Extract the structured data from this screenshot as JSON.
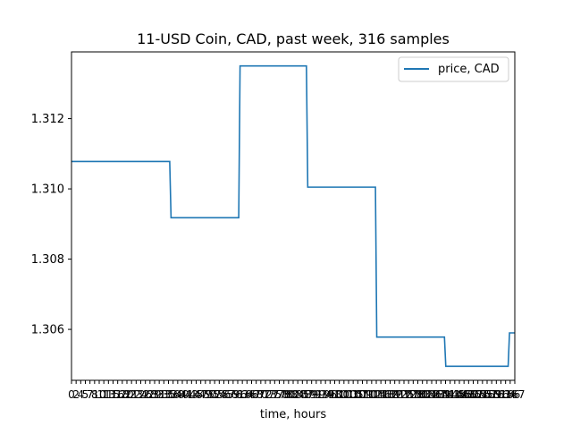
{
  "chart_data": {
    "type": "line",
    "title": "11-USD Coin, CAD, past week, 316 samples",
    "xlabel": "time, hours",
    "ylabel": "",
    "xlim": [
      0,
      167
    ],
    "ylim": [
      1.30455,
      1.3139
    ],
    "yticks": [
      1.306,
      1.308,
      1.31,
      1.312
    ],
    "ytick_labels": [
      "1.306",
      "1.308",
      "1.310",
      "1.312"
    ],
    "xtick_labels": [
      "0",
      "2",
      "4",
      "5",
      "7",
      "8",
      "10",
      "11",
      "13",
      "15",
      "16",
      "18",
      "20",
      "21",
      "23",
      "24",
      "26",
      "28",
      "29",
      "31",
      "33",
      "35",
      "36",
      "38",
      "40",
      "41",
      "43",
      "45",
      "47",
      "49",
      "50",
      "52",
      "54",
      "56",
      "57",
      "59",
      "61",
      "63",
      "64",
      "66",
      "68",
      "70",
      "72",
      "73",
      "75",
      "77",
      "78",
      "80",
      "82",
      "84",
      "85",
      "87",
      "89",
      "91",
      "93",
      "94",
      "96",
      "98",
      "100",
      "101",
      "103",
      "105",
      "107",
      "109",
      "110",
      "112",
      "114",
      "116",
      "118",
      "119",
      "121",
      "123",
      "125",
      "127",
      "128",
      "130",
      "132",
      "134",
      "136",
      "137",
      "139",
      "141",
      "143",
      "145",
      "146",
      "148",
      "150",
      "152",
      "154",
      "155",
      "157",
      "159",
      "161",
      "163",
      "164",
      "166",
      "167"
    ],
    "series": [
      {
        "name": "price, CAD",
        "color": "#1f77b4",
        "x": [
          0,
          37,
          37.5,
          63,
          63.5,
          88.5,
          89,
          114.5,
          115,
          140.5,
          141,
          164.5,
          165,
          167
        ],
        "y": [
          1.31078,
          1.31078,
          1.30918,
          1.30918,
          1.3135,
          1.3135,
          1.31005,
          1.31005,
          1.30578,
          1.30578,
          1.30495,
          1.30495,
          1.3059,
          1.3059
        ]
      }
    ],
    "legend_position": "top-right",
    "grid": false
  }
}
